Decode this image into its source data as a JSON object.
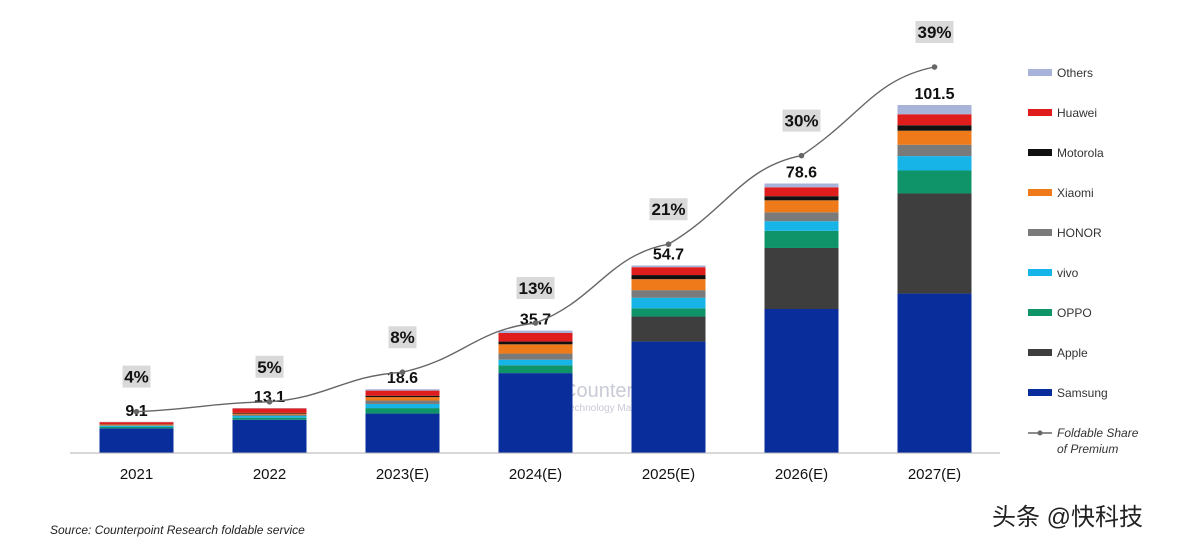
{
  "chart_data": {
    "type": "bar",
    "stacked": true,
    "categories": [
      "2021",
      "2022",
      "2023(E)",
      "2024(E)",
      "2025(E)",
      "2026(E)",
      "2027(E)"
    ],
    "totals": [
      "9.1",
      "13.1",
      "18.6",
      "35.7",
      "54.7",
      "78.6",
      "101.5"
    ],
    "share_labels": [
      "4%",
      "5%",
      "8%",
      "13%",
      "21%",
      "30%",
      "39%"
    ],
    "series": [
      {
        "name": "Samsung",
        "color": "#0a2d9c",
        "values": [
          7.2,
          9.7,
          11.5,
          23.3,
          32.5,
          42.0,
          46.5
        ]
      },
      {
        "name": "Apple",
        "color": "#3e3e3e",
        "values": [
          0,
          0,
          0,
          0,
          7.3,
          17.8,
          29.2
        ]
      },
      {
        "name": "OPPO",
        "color": "#0e9468",
        "values": [
          0.4,
          0.6,
          1.6,
          2.3,
          2.4,
          5.0,
          6.7
        ]
      },
      {
        "name": "vivo",
        "color": "#17b4e8",
        "values": [
          0.3,
          0.5,
          1.2,
          1.6,
          3.1,
          2.8,
          4.2
        ]
      },
      {
        "name": "HONOR",
        "color": "#7a7a7a",
        "values": [
          0.2,
          0.4,
          1.0,
          1.8,
          2.2,
          2.6,
          3.3
        ]
      },
      {
        "name": "Xiaomi",
        "color": "#ef7a1a",
        "values": [
          0.2,
          0.3,
          1.0,
          2.7,
          3.2,
          3.5,
          4.1
        ]
      },
      {
        "name": "Motorola",
        "color": "#111111",
        "values": [
          0.1,
          0.2,
          0.4,
          0.8,
          1.2,
          1.2,
          1.6
        ]
      },
      {
        "name": "Huawei",
        "color": "#e01d1d",
        "values": [
          0.6,
          1.3,
          1.5,
          2.5,
          2.3,
          2.6,
          3.2
        ]
      },
      {
        "name": "Others",
        "color": "#a7b3d8",
        "values": [
          0.1,
          0.1,
          0.4,
          0.7,
          0.5,
          1.1,
          2.7
        ]
      }
    ],
    "line_series": {
      "name": "Foldable Share of Premium",
      "name_lines": [
        "Foldable Share",
        "of Premium"
      ],
      "color": "#666666",
      "values": [
        4,
        5,
        8,
        13,
        21,
        30,
        39
      ],
      "unit": "%"
    },
    "legend_position": "right",
    "grid": false
  },
  "watermark": {
    "title": "Counterpoint",
    "subtitle": "Technology Market Research"
  },
  "source": "Source: Counterpoint Research foldable service",
  "credit": "头条 @快科技"
}
